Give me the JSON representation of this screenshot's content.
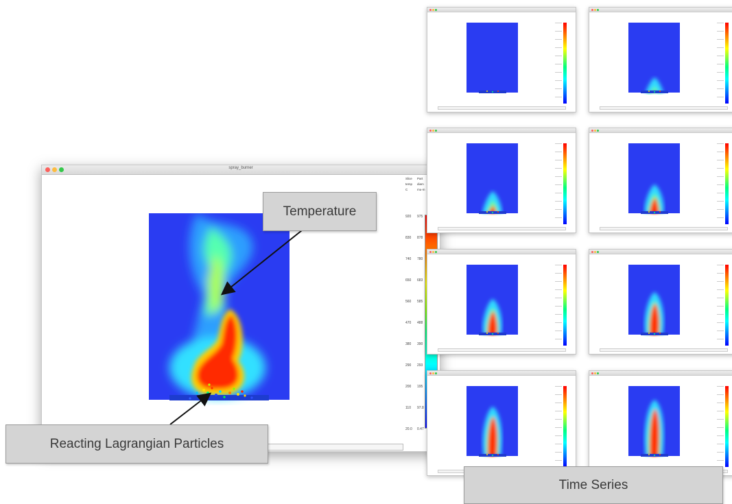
{
  "main_window": {
    "title": "spray_burner",
    "legend": {
      "col1_header": [
        "Slice",
        "temp",
        "C"
      ],
      "col2_header": [
        "Part",
        "diam",
        "mu-m"
      ],
      "temp_values": [
        "920",
        "830",
        "740",
        "650",
        "560",
        "470",
        "380",
        "290",
        "200",
        "110",
        "20.0"
      ],
      "diam_values": [
        "975",
        "878",
        "780",
        "683",
        "585",
        "488",
        "390",
        "293",
        "195",
        "97.8",
        "0.47"
      ]
    }
  },
  "callouts": {
    "temperature": "Temperature",
    "particles": "Reacting Lagrangian Particles",
    "time_series": "Time Series"
  },
  "colors": {
    "background_field": "#2a3cf2",
    "callout_bg": "#d4d4d4",
    "arrow": "#111111"
  },
  "time_series_frames": 8
}
